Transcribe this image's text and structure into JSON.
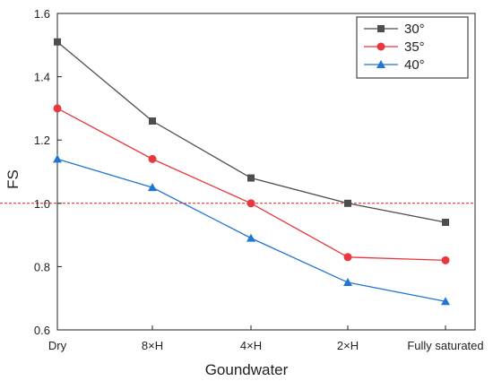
{
  "chart_data": {
    "type": "line",
    "xlabel": "Goundwater",
    "ylabel": "FS",
    "categories": [
      "Dry",
      "8×H",
      "4×H",
      "2×H",
      "Fully saturated"
    ],
    "ylim": [
      0.6,
      1.6
    ],
    "yticks": [
      "0.6",
      "0.8",
      "1.0",
      "1.2",
      "1.4",
      "1.6"
    ],
    "reference_line": {
      "y": 1.0,
      "color": "#e41a1c",
      "style": "dashed"
    },
    "legend_position": "top-right",
    "grid": false,
    "series": [
      {
        "name": "30°",
        "color": "#4d4d4d",
        "marker": "square",
        "values": [
          1.51,
          1.26,
          1.08,
          1.0,
          0.94
        ]
      },
      {
        "name": "35°",
        "color": "#e8383d",
        "marker": "circle",
        "values": [
          1.3,
          1.14,
          1.0,
          0.83,
          0.82
        ]
      },
      {
        "name": "40°",
        "color": "#2176d2",
        "marker": "triangle",
        "values": [
          1.14,
          1.05,
          0.89,
          0.75,
          0.69
        ]
      }
    ]
  }
}
